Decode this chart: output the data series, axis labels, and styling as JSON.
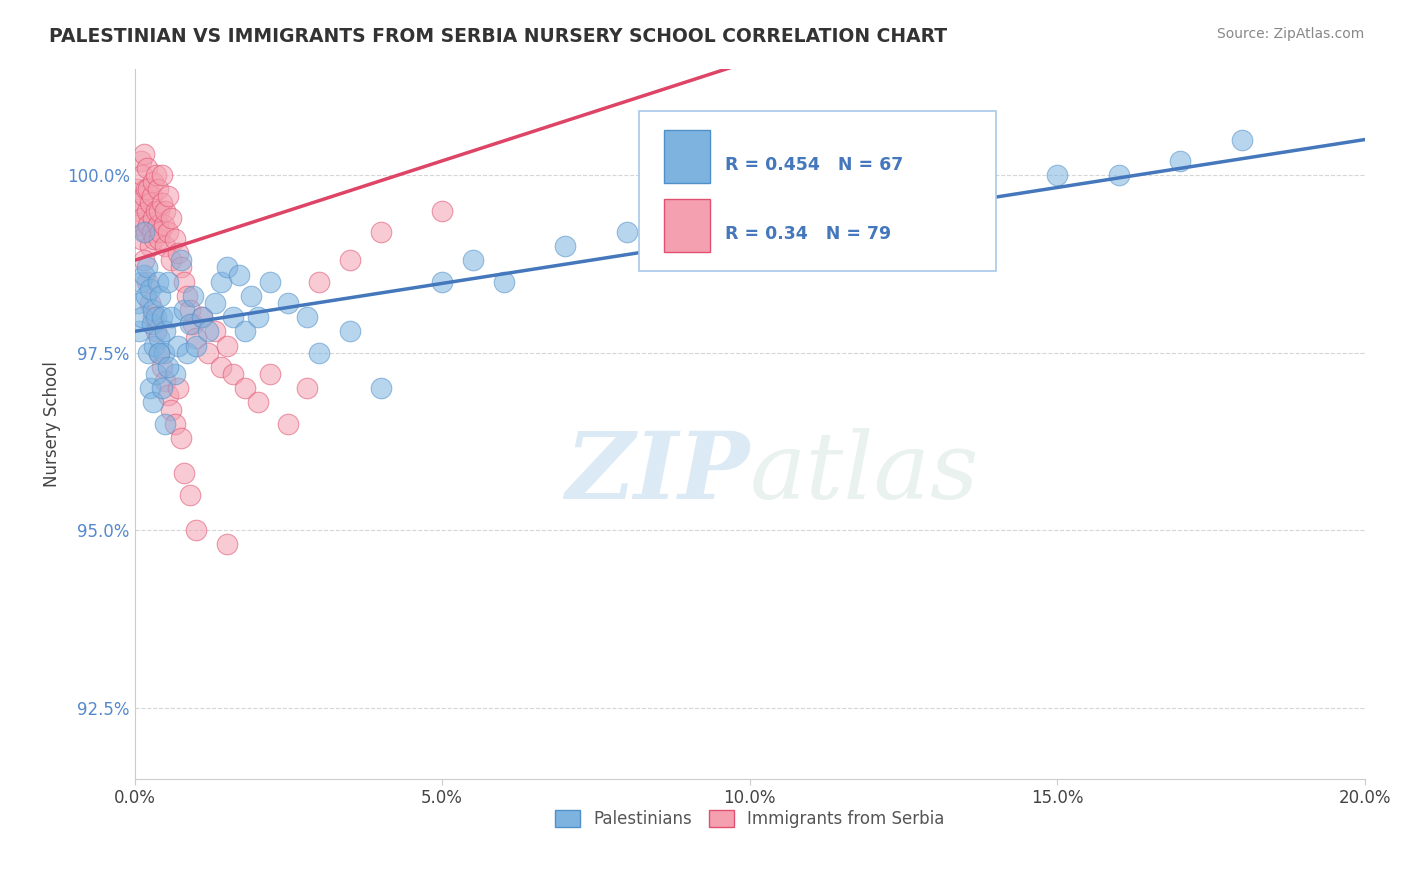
{
  "title": "PALESTINIAN VS IMMIGRANTS FROM SERBIA NURSERY SCHOOL CORRELATION CHART",
  "source": "Source: ZipAtlas.com",
  "ylabel": "Nursery School",
  "xlim": [
    0.0,
    20.0
  ],
  "ylim": [
    91.5,
    101.5
  ],
  "yticks": [
    92.5,
    95.0,
    97.5,
    100.0
  ],
  "ytick_labels": [
    "92.5%",
    "95.0%",
    "97.5%",
    "100.0%"
  ],
  "xticks": [
    0.0,
    5.0,
    10.0,
    15.0,
    20.0
  ],
  "xtick_labels": [
    "0.0%",
    "5.0%",
    "10.0%",
    "15.0%",
    "20.0%"
  ],
  "blue_R": 0.454,
  "blue_N": 67,
  "pink_R": 0.34,
  "pink_N": 79,
  "blue_color": "#7EB3E0",
  "pink_color": "#F4A0B0",
  "blue_edge_color": "#5090C8",
  "pink_edge_color": "#E05070",
  "blue_line_color": "#4477BB",
  "pink_line_color": "#DD4466",
  "legend_label_blue": "Palestinians",
  "legend_label_pink": "Immigrants from Serbia",
  "watermark_zip": "ZIP",
  "watermark_atlas": "atlas",
  "background_color": "#ffffff",
  "blue_x": [
    0.05,
    0.08,
    0.1,
    0.12,
    0.15,
    0.15,
    0.18,
    0.2,
    0.22,
    0.25,
    0.28,
    0.3,
    0.32,
    0.35,
    0.38,
    0.4,
    0.42,
    0.45,
    0.48,
    0.5,
    0.55,
    0.6,
    0.65,
    0.7,
    0.75,
    0.8,
    0.85,
    0.9,
    0.95,
    1.0,
    1.1,
    1.2,
    1.3,
    1.4,
    1.5,
    1.6,
    1.7,
    1.8,
    1.9,
    2.0,
    2.2,
    2.5,
    2.8,
    3.0,
    3.5,
    4.0,
    5.0,
    5.5,
    6.0,
    7.0,
    8.0,
    9.0,
    10.0,
    11.0,
    12.0,
    13.0,
    15.0,
    16.0,
    17.0,
    18.0,
    0.25,
    0.3,
    0.35,
    0.4,
    0.45,
    0.5,
    0.55
  ],
  "blue_y": [
    98.2,
    97.8,
    98.5,
    98.0,
    98.6,
    99.2,
    98.3,
    98.7,
    97.5,
    98.4,
    97.9,
    98.1,
    97.6,
    98.0,
    98.5,
    97.7,
    98.3,
    98.0,
    97.5,
    97.8,
    98.5,
    98.0,
    97.2,
    97.6,
    98.8,
    98.1,
    97.5,
    97.9,
    98.3,
    97.6,
    98.0,
    97.8,
    98.2,
    98.5,
    98.7,
    98.0,
    98.6,
    97.8,
    98.3,
    98.0,
    98.5,
    98.2,
    98.0,
    97.5,
    97.8,
    97.0,
    98.5,
    98.8,
    98.5,
    99.0,
    99.2,
    99.0,
    99.5,
    99.3,
    99.5,
    99.8,
    100.0,
    100.0,
    100.2,
    100.5,
    97.0,
    96.8,
    97.2,
    97.5,
    97.0,
    96.5,
    97.3
  ],
  "pink_x": [
    0.02,
    0.04,
    0.06,
    0.08,
    0.1,
    0.1,
    0.12,
    0.12,
    0.15,
    0.15,
    0.18,
    0.18,
    0.2,
    0.2,
    0.22,
    0.22,
    0.25,
    0.25,
    0.28,
    0.28,
    0.3,
    0.3,
    0.32,
    0.35,
    0.35,
    0.38,
    0.38,
    0.4,
    0.4,
    0.42,
    0.45,
    0.45,
    0.48,
    0.5,
    0.5,
    0.55,
    0.55,
    0.6,
    0.6,
    0.65,
    0.7,
    0.75,
    0.8,
    0.85,
    0.9,
    0.95,
    1.0,
    1.1,
    1.2,
    1.3,
    1.4,
    1.5,
    1.6,
    1.8,
    2.0,
    2.2,
    2.5,
    2.8,
    3.0,
    3.5,
    4.0,
    5.0,
    0.15,
    0.2,
    0.25,
    0.3,
    0.35,
    0.4,
    0.45,
    0.5,
    0.55,
    0.6,
    0.65,
    0.7,
    0.75,
    0.8,
    0.9,
    1.0,
    1.5
  ],
  "pink_y": [
    99.5,
    99.8,
    99.3,
    99.6,
    99.1,
    100.2,
    99.4,
    100.0,
    99.7,
    100.3,
    99.2,
    99.8,
    99.5,
    100.1,
    99.3,
    99.8,
    99.0,
    99.6,
    99.2,
    99.7,
    99.4,
    99.9,
    99.1,
    99.5,
    100.0,
    99.3,
    99.8,
    99.1,
    99.5,
    99.2,
    99.6,
    100.0,
    99.3,
    99.0,
    99.5,
    99.2,
    99.7,
    99.4,
    98.8,
    99.1,
    98.9,
    98.7,
    98.5,
    98.3,
    98.1,
    97.9,
    97.7,
    98.0,
    97.5,
    97.8,
    97.3,
    97.6,
    97.2,
    97.0,
    96.8,
    97.2,
    96.5,
    97.0,
    98.5,
    98.8,
    99.2,
    99.5,
    98.8,
    98.5,
    98.2,
    98.0,
    97.8,
    97.5,
    97.3,
    97.1,
    96.9,
    96.7,
    96.5,
    97.0,
    96.3,
    95.8,
    95.5,
    95.0,
    94.8
  ]
}
